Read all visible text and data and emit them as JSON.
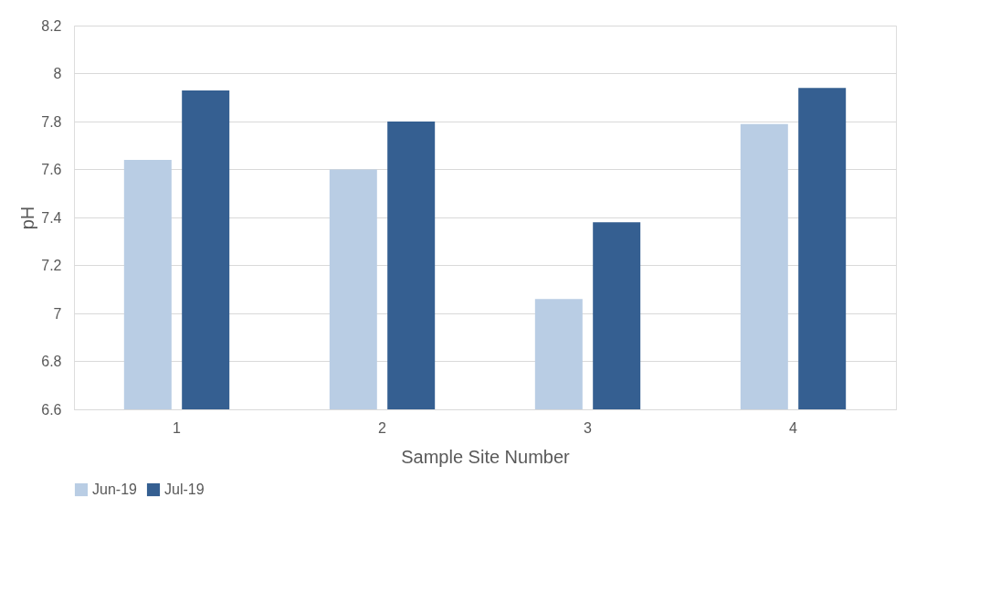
{
  "chart_data": {
    "type": "bar",
    "xlabel": "Sample Site Number",
    "ylabel": "pH",
    "categories": [
      "1",
      "2",
      "3",
      "4"
    ],
    "series": [
      {
        "name": "Jun-19",
        "color": "#b9cde4",
        "values": [
          7.64,
          7.6,
          7.06,
          7.79
        ]
      },
      {
        "name": "Jul-19",
        "color": "#355f91",
        "values": [
          7.93,
          7.8,
          7.38,
          7.94
        ]
      }
    ],
    "ylim": [
      6.6,
      8.2
    ],
    "yticks": [
      6.6,
      6.8,
      7,
      7.2,
      7.4,
      7.6,
      7.8,
      8,
      8.2
    ],
    "grid": "y",
    "legend": "bottom"
  }
}
